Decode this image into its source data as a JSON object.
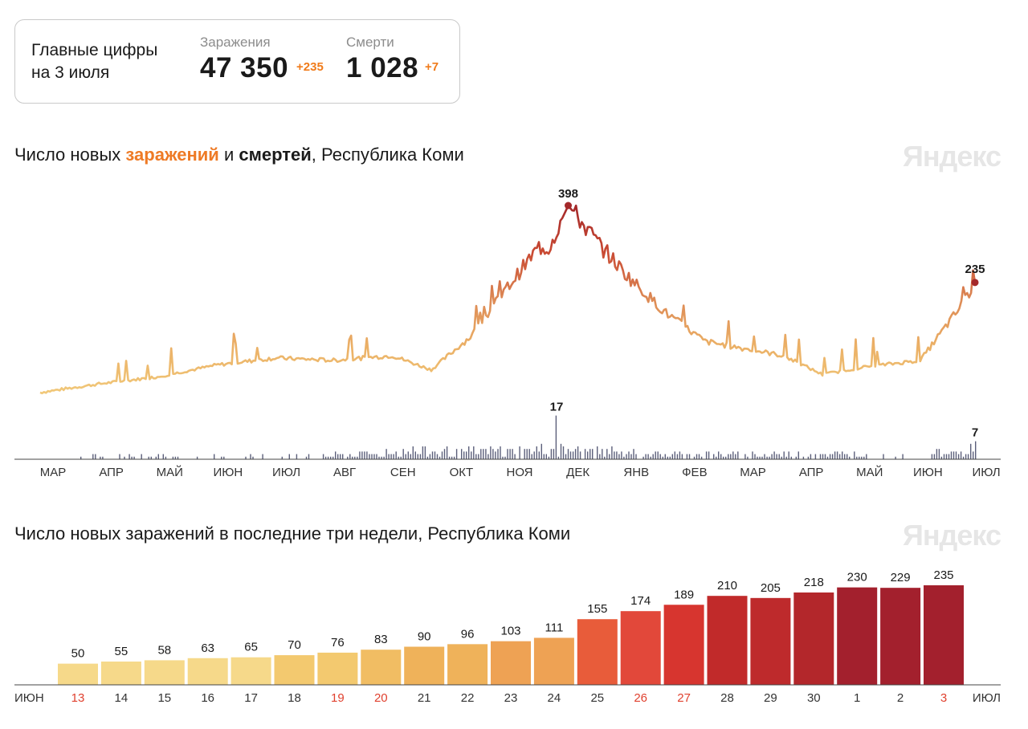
{
  "summary": {
    "label_line1": "Главные цифры",
    "label_line2": "на 3 июля",
    "infections": {
      "caption": "Заражения",
      "value": "47 350",
      "delta": "+235"
    },
    "deaths": {
      "caption": "Смерти",
      "value": "1 028",
      "delta": "+7"
    }
  },
  "brand": "Яндекс",
  "chart1": {
    "title_parts": [
      "Число новых ",
      "заражений",
      " и ",
      "смертей",
      ", Республика Коми"
    ],
    "peak_infections_label": "398",
    "last_infections_label": "235",
    "peak_deaths_label": "17",
    "last_deaths_label": "7",
    "months": [
      "МАР",
      "АПР",
      "МАЙ",
      "ИЮН",
      "ИЮЛ",
      "АВГ",
      "СЕН",
      "ОКТ",
      "НОЯ",
      "ДЕК",
      "ЯНВ",
      "ФЕВ",
      "МАР",
      "АПР",
      "МАЙ",
      "ИЮН",
      "ИЮЛ"
    ]
  },
  "chart2": {
    "title": "Число новых заражений в последние три недели, Республика Коми",
    "left_month": "ИЮН",
    "right_month": "ИЮЛ"
  },
  "chart_data": [
    {
      "type": "line",
      "title": "Число новых заражений и смертей, Республика Коми",
      "series": [
        {
          "name": "заражения",
          "x": [
            0,
            30,
            60,
            90,
            120,
            150,
            180,
            200,
            220,
            240,
            255,
            260,
            270,
            285,
            300,
            320,
            340,
            360,
            380,
            400,
            420,
            450,
            470,
            478
          ],
          "values": [
            2,
            20,
            35,
            60,
            75,
            70,
            80,
            50,
            120,
            230,
            310,
            308,
            398,
            320,
            250,
            170,
            110,
            95,
            80,
            40,
            55,
            70,
            180,
            235
          ],
          "peak": 398,
          "last": 235
        },
        {
          "name": "смерти",
          "peak": 17,
          "last": 7
        }
      ],
      "categories": [
        "МАР",
        "АПР",
        "МАЙ",
        "ИЮН",
        "ИЮЛ",
        "АВГ",
        "СЕН",
        "ОКТ",
        "НОЯ",
        "ДЕК",
        "ЯНВ",
        "ФЕВ",
        "МАР",
        "АПР",
        "МАЙ",
        "ИЮН",
        "ИЮЛ"
      ],
      "ylim": [
        0,
        420
      ]
    },
    {
      "type": "bar",
      "title": "Число новых заражений в последние три недели, Республика Коми",
      "categories": [
        "13",
        "14",
        "15",
        "16",
        "17",
        "18",
        "19",
        "20",
        "21",
        "22",
        "23",
        "24",
        "25",
        "26",
        "27",
        "28",
        "29",
        "30",
        "1",
        "2",
        "3"
      ],
      "values": [
        50,
        55,
        58,
        63,
        65,
        70,
        76,
        83,
        90,
        96,
        103,
        111,
        155,
        174,
        189,
        210,
        205,
        218,
        230,
        229,
        235
      ],
      "weekend": [
        true,
        false,
        false,
        false,
        false,
        false,
        true,
        true,
        false,
        false,
        false,
        false,
        false,
        true,
        true,
        false,
        false,
        false,
        false,
        false,
        true
      ],
      "colors": [
        "#f6d98a",
        "#f6d98a",
        "#f6d98a",
        "#f6d98a",
        "#f6d98a",
        "#f3c96f",
        "#f3c96f",
        "#f1bd63",
        "#efb25a",
        "#efb25a",
        "#eea254",
        "#eea254",
        "#e85c3a",
        "#e2483a",
        "#d7352f",
        "#c12a2a",
        "#be2a2c",
        "#b3272b",
        "#a3202d",
        "#a3202d",
        "#a3202d"
      ],
      "ylim": [
        0,
        260
      ]
    }
  ]
}
